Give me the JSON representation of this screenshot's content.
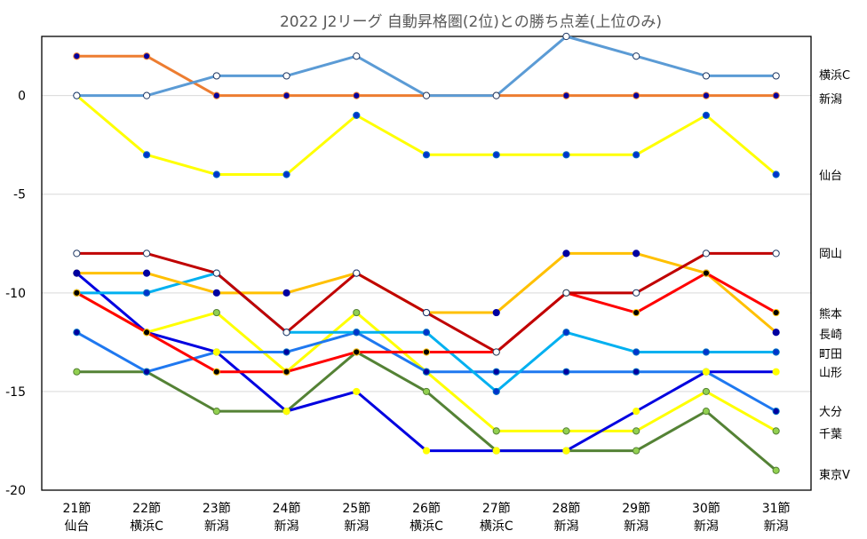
{
  "chart_data": {
    "type": "line",
    "title": "2022 J2リーグ 自動昇格圏(2位)との勝ち点差(上位のみ)",
    "xlabel": "",
    "ylabel": "",
    "ylim": [
      -20,
      3
    ],
    "yticks": [
      0,
      -5,
      -10,
      -15,
      -20
    ],
    "grid": true,
    "legend": "right (labels at series end)",
    "categories": [
      {
        "round": "21節",
        "opponent": "仙台"
      },
      {
        "round": "22節",
        "opponent": "横浜C"
      },
      {
        "round": "23節",
        "opponent": "新潟"
      },
      {
        "round": "24節",
        "opponent": "新潟"
      },
      {
        "round": "25節",
        "opponent": "新潟"
      },
      {
        "round": "26節",
        "opponent": "横浜C"
      },
      {
        "round": "27節",
        "opponent": "横浜C"
      },
      {
        "round": "28節",
        "opponent": "新潟"
      },
      {
        "round": "29節",
        "opponent": "新潟"
      },
      {
        "round": "30節",
        "opponent": "新潟"
      },
      {
        "round": "31節",
        "opponent": "新潟"
      }
    ],
    "series": [
      {
        "name": "横浜C",
        "color": "#5B9BD5",
        "marker": "#FFFFFF",
        "markerStroke": "#1F3864",
        "values": [
          0,
          0,
          1,
          1,
          2,
          0,
          0,
          3,
          2,
          1,
          1
        ]
      },
      {
        "name": "新潟",
        "color": "#ED7D31",
        "marker": "#0000A0",
        "markerStroke": "#ED7D31",
        "values": [
          2,
          2,
          0,
          0,
          0,
          0,
          0,
          0,
          0,
          0,
          0
        ]
      },
      {
        "name": "仙台",
        "color": "#FFFF00",
        "marker": "#0033CC",
        "markerStroke": "#0070C0",
        "values": [
          0,
          -3,
          -4,
          -4,
          -1,
          -3,
          -3,
          -3,
          -3,
          -1,
          -4
        ]
      },
      {
        "name": "岡山",
        "color": "#C00000",
        "marker": "#FFFFFF",
        "markerStroke": "#1F3864",
        "values": [
          -8,
          -8,
          -9,
          -12,
          -9,
          -11,
          -13,
          -10,
          -10,
          -8,
          -8
        ]
      },
      {
        "name": "熊本",
        "color": "#FF0000",
        "marker": "#000000",
        "markerStroke": "#FFC000",
        "values": [
          -10,
          -12,
          -14,
          -14,
          -13,
          -13,
          -13,
          -10,
          -11,
          -9,
          -11
        ]
      },
      {
        "name": "長崎",
        "color": "#FFC000",
        "marker": "#0000A0",
        "markerStroke": "#0000A0",
        "values": [
          -9,
          -9,
          -10,
          -10,
          -9,
          -11,
          -11,
          -8,
          -8,
          -9,
          -12
        ]
      },
      {
        "name": "町田",
        "color": "#00B0F0",
        "marker": "#0033CC",
        "markerStroke": "#0070C0",
        "values": [
          -10,
          -10,
          -9,
          -12,
          -12,
          -12,
          -15,
          -12,
          -13,
          -13,
          -13
        ]
      },
      {
        "name": "山形",
        "color": "#0000E0",
        "marker": "#FFFF00",
        "markerStroke": "#FFFF00",
        "values": [
          -9,
          -12,
          -13,
          -16,
          -15,
          -18,
          -18,
          -18,
          -16,
          -14,
          -14
        ]
      },
      {
        "name": "大分",
        "color": "#1F78F0",
        "marker": "#0000A0",
        "markerStroke": "#0070C0",
        "values": [
          -12,
          -14,
          -13,
          -13,
          -12,
          -14,
          -14,
          -14,
          -14,
          -14,
          -16
        ]
      },
      {
        "name": "千葉",
        "color": "#FFFF00",
        "marker": "#92D050",
        "markerStroke": "#548235",
        "values": [
          -10,
          -12,
          -11,
          -14,
          -11,
          -14,
          -17,
          -17,
          -17,
          -15,
          -17
        ]
      },
      {
        "name": "東京V",
        "color": "#548235",
        "marker": "#92D050",
        "markerStroke": "#548235",
        "values": [
          -14,
          -14,
          -16,
          -16,
          -13,
          -15,
          -18,
          -18,
          -18,
          -16,
          -19
        ]
      }
    ]
  }
}
